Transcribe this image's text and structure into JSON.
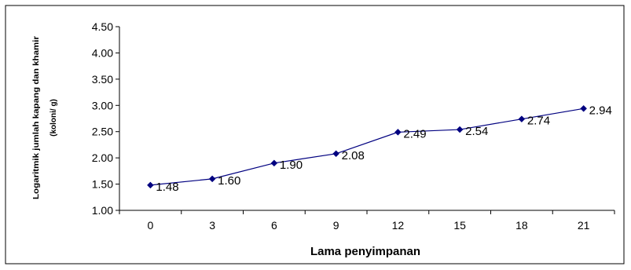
{
  "chart_data": {
    "type": "line",
    "title": "",
    "xlabel": "Lama penyimpanan",
    "ylabel_line1": "Logaritmik jumlah kapang dan khamir",
    "ylabel_line2": "(koloni/ g)",
    "categories": [
      "0",
      "3",
      "6",
      "9",
      "12",
      "15",
      "18",
      "21"
    ],
    "series": [
      {
        "values": [
          1.48,
          1.6,
          1.9,
          2.08,
          2.49,
          2.54,
          2.74,
          2.94
        ]
      }
    ],
    "data_labels": [
      "1.48",
      "1.60",
      "1.90",
      "2.08",
      "2.49",
      "2.54",
      "2.74",
      "2.94"
    ],
    "y_ticks": [
      "1.00",
      "1.50",
      "2.00",
      "2.50",
      "3.00",
      "3.50",
      "4.00",
      "4.50"
    ],
    "ylim": [
      1.0,
      4.5
    ],
    "grid": false,
    "legend": "none",
    "colors": {
      "line": "#000080",
      "marker": "#000080",
      "axis": "#000000",
      "frame": "#000000"
    }
  }
}
